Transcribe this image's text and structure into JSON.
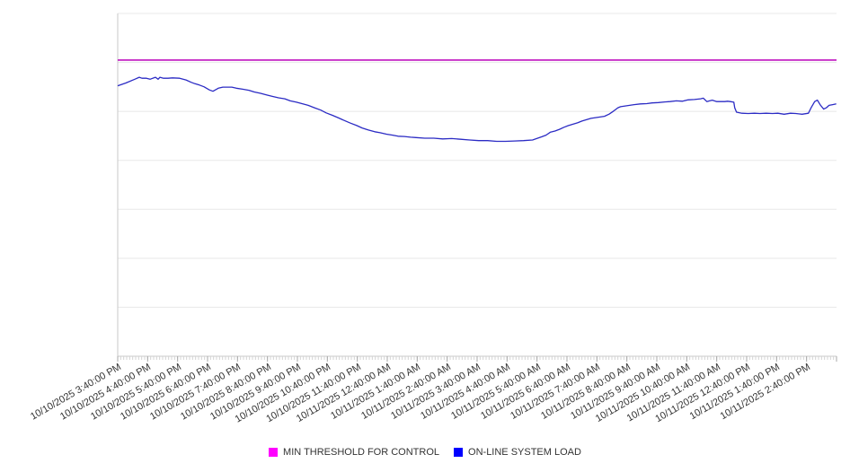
{
  "chart_data": {
    "type": "line",
    "title": "",
    "background_color": "#ffffff",
    "x_axis": {
      "tick_labels": [
        "10/10/2025 3:40:00 PM",
        "10/10/2025 4:40:00 PM",
        "10/10/2025 5:40:00 PM",
        "10/10/2025 6:40:00 PM",
        "10/10/2025 7:40:00 PM",
        "10/10/2025 8:40:00 PM",
        "10/10/2025 9:40:00 PM",
        "10/10/2025 10:40:00 PM",
        "10/10/2025 11:40:00 PM",
        "10/11/2025 12:40:00 AM",
        "10/11/2025 1:40:00 AM",
        "10/11/2025 2:40:00 AM",
        "10/11/2025 3:40:00 AM",
        "10/11/2025 4:40:00 AM",
        "10/11/2025 5:40:00 AM",
        "10/11/2025 6:40:00 AM",
        "10/11/2025 7:40:00 AM",
        "10/11/2025 8:40:00 AM",
        "10/11/2025 9:40:00 AM",
        "10/11/2025 10:40:00 AM",
        "10/11/2025 11:40:00 AM",
        "10/11/2025 12:40:00 PM",
        "10/11/2025 1:40:00 PM",
        "10/11/2025 2:40:00 PM"
      ],
      "label_rotation_deg": -30,
      "range_hours": 24,
      "minor_ticks_per_hour": 10,
      "label_color": "#333333",
      "tick_minor_color": "#d4d4d4",
      "tick_major_color": "#a9a9a9",
      "axis_line_color": "#c8c8c8"
    },
    "y_axis": {
      "tick_labels": [],
      "tick_labels_visible": false,
      "ylim": [
        0,
        100
      ],
      "gridline_count": 8,
      "gridline_color": "#e8e8e8"
    },
    "legend_position": "bottom-center",
    "series": [
      {
        "name": "MIN THRESHOLD FOR CONTROL",
        "type": "threshold-line",
        "line_color": "#C113C1",
        "legend_color": "#FF00FF",
        "value": 86.4
      },
      {
        "name": "ON-LINE SYSTEM LOAD",
        "type": "line",
        "line_color": "#2B2BC4",
        "legend_color": "#0000FF",
        "points": [
          [
            0,
            78.9
          ],
          [
            0.27,
            79.7
          ],
          [
            0.57,
            80.8
          ],
          [
            0.72,
            81.4
          ],
          [
            0.81,
            81.1
          ],
          [
            0.96,
            81.1
          ],
          [
            1.08,
            80.8
          ],
          [
            1.26,
            81.4
          ],
          [
            1.35,
            80.8
          ],
          [
            1.41,
            81.4
          ],
          [
            1.53,
            81.1
          ],
          [
            1.68,
            81.1
          ],
          [
            1.83,
            81.2
          ],
          [
            2.07,
            81.1
          ],
          [
            2.28,
            80.6
          ],
          [
            2.46,
            79.9
          ],
          [
            2.58,
            79.5
          ],
          [
            2.73,
            79.1
          ],
          [
            2.88,
            78.6
          ],
          [
            3.06,
            77.7
          ],
          [
            3.18,
            77.3
          ],
          [
            3.36,
            78.2
          ],
          [
            3.51,
            78.5
          ],
          [
            3.81,
            78.5
          ],
          [
            3.96,
            78.2
          ],
          [
            4.17,
            77.9
          ],
          [
            4.38,
            77.6
          ],
          [
            4.56,
            77.1
          ],
          [
            4.77,
            76.7
          ],
          [
            4.98,
            76.2
          ],
          [
            5.16,
            75.8
          ],
          [
            5.37,
            75.4
          ],
          [
            5.58,
            75.1
          ],
          [
            5.76,
            74.5
          ],
          [
            5.97,
            74.1
          ],
          [
            6.18,
            73.6
          ],
          [
            6.36,
            73.2
          ],
          [
            6.57,
            72.5
          ],
          [
            6.78,
            71.8
          ],
          [
            6.96,
            71.0
          ],
          [
            7.17,
            70.3
          ],
          [
            7.38,
            69.5
          ],
          [
            7.56,
            68.8
          ],
          [
            7.77,
            68.0
          ],
          [
            7.98,
            67.3
          ],
          [
            8.16,
            66.6
          ],
          [
            8.37,
            66.0
          ],
          [
            8.58,
            65.5
          ],
          [
            8.76,
            65.2
          ],
          [
            8.97,
            64.8
          ],
          [
            9.18,
            64.5
          ],
          [
            9.36,
            64.2
          ],
          [
            9.57,
            64.1
          ],
          [
            9.78,
            63.9
          ],
          [
            9.96,
            63.8
          ],
          [
            10.25,
            63.6
          ],
          [
            10.55,
            63.6
          ],
          [
            10.85,
            63.4
          ],
          [
            11.15,
            63.5
          ],
          [
            11.45,
            63.3
          ],
          [
            11.75,
            63.1
          ],
          [
            12.05,
            62.9
          ],
          [
            12.35,
            62.9
          ],
          [
            12.65,
            62.7
          ],
          [
            12.95,
            62.7
          ],
          [
            13.25,
            62.8
          ],
          [
            13.55,
            62.9
          ],
          [
            13.85,
            63.1
          ],
          [
            14.15,
            64.0
          ],
          [
            14.3,
            64.5
          ],
          [
            14.45,
            65.4
          ],
          [
            14.6,
            65.7
          ],
          [
            14.75,
            66.2
          ],
          [
            14.9,
            66.8
          ],
          [
            15.05,
            67.3
          ],
          [
            15.2,
            67.7
          ],
          [
            15.35,
            68.1
          ],
          [
            15.5,
            68.6
          ],
          [
            15.65,
            69.0
          ],
          [
            15.8,
            69.4
          ],
          [
            15.95,
            69.6
          ],
          [
            16.1,
            69.8
          ],
          [
            16.25,
            70.0
          ],
          [
            16.4,
            70.6
          ],
          [
            16.55,
            71.5
          ],
          [
            16.7,
            72.5
          ],
          [
            16.79,
            72.8
          ],
          [
            16.94,
            73.0
          ],
          [
            17.09,
            73.2
          ],
          [
            17.24,
            73.4
          ],
          [
            17.45,
            73.6
          ],
          [
            17.66,
            73.7
          ],
          [
            17.84,
            73.9
          ],
          [
            18.05,
            74.0
          ],
          [
            18.26,
            74.2
          ],
          [
            18.44,
            74.3
          ],
          [
            18.65,
            74.5
          ],
          [
            18.86,
            74.4
          ],
          [
            19.04,
            74.8
          ],
          [
            19.25,
            74.9
          ],
          [
            19.46,
            75.1
          ],
          [
            19.55,
            75.3
          ],
          [
            19.67,
            74.3
          ],
          [
            19.76,
            74.5
          ],
          [
            19.85,
            74.7
          ],
          [
            20.0,
            74.3
          ],
          [
            20.15,
            74.3
          ],
          [
            20.27,
            74.3
          ],
          [
            20.36,
            74.4
          ],
          [
            20.45,
            74.3
          ],
          [
            20.57,
            74.1
          ],
          [
            20.6,
            72.5
          ],
          [
            20.66,
            71.2
          ],
          [
            20.84,
            70.9
          ],
          [
            21.05,
            70.8
          ],
          [
            21.26,
            70.9
          ],
          [
            21.44,
            70.8
          ],
          [
            21.65,
            70.9
          ],
          [
            21.86,
            70.8
          ],
          [
            22.04,
            70.9
          ],
          [
            22.25,
            70.6
          ],
          [
            22.46,
            70.9
          ],
          [
            22.64,
            70.8
          ],
          [
            22.85,
            70.6
          ],
          [
            23.06,
            70.9
          ],
          [
            23.15,
            72.5
          ],
          [
            23.27,
            74.3
          ],
          [
            23.36,
            74.7
          ],
          [
            23.45,
            73.4
          ],
          [
            23.57,
            72.1
          ],
          [
            23.66,
            72.5
          ],
          [
            23.75,
            73.2
          ],
          [
            23.87,
            73.4
          ],
          [
            23.99,
            73.6
          ]
        ]
      }
    ]
  }
}
